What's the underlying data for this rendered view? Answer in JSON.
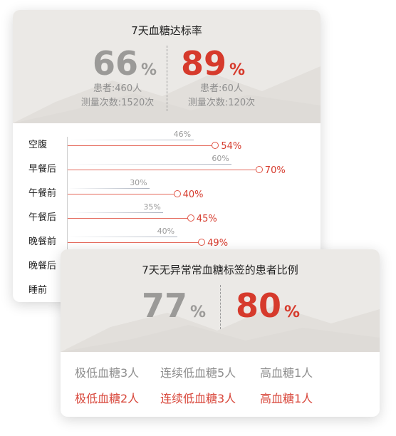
{
  "compliance_card": {
    "title": "7天血糖达标率",
    "left": {
      "value": "66",
      "unit": "%",
      "patients": "患者:460人",
      "measures": "测量次数:1520次"
    },
    "right": {
      "value": "89",
      "unit": "%",
      "patients": "患者:60人",
      "measures": "测量次数:120次"
    }
  },
  "chart_data": {
    "type": "bar",
    "categories": [
      "空腹",
      "早餐后",
      "午餐前",
      "午餐后",
      "晚餐前",
      "晚餐后",
      "睡前"
    ],
    "series": [
      {
        "values": [
          46,
          60,
          30,
          35,
          40,
          null,
          null
        ],
        "labels": [
          "46%",
          "60%",
          "30%",
          "35%",
          "40%",
          "",
          ""
        ],
        "color": "#a9b0bd"
      },
      {
        "values": [
          54,
          70,
          40,
          45,
          49,
          null,
          null
        ],
        "labels": [
          "54%",
          "70%",
          "40%",
          "45%",
          "49%",
          "",
          ""
        ],
        "color": "#d63a2c"
      }
    ]
  },
  "tag_card": {
    "title": "7天无异常常血糖标签的患者比例",
    "left": {
      "value": "77",
      "unit": "%"
    },
    "right": {
      "value": "80",
      "unit": "%"
    },
    "row_gray": [
      "极低血糖3人",
      "连续低血糖5人",
      "高血糖1人"
    ],
    "row_red": [
      "极低血糖2人",
      "连续低血糖3人",
      "高血糖1人"
    ]
  },
  "colors": {
    "accent_red": "#d63a2c",
    "muted_gray": "#9b9a98",
    "hero_bg": "#ebe9e6"
  }
}
